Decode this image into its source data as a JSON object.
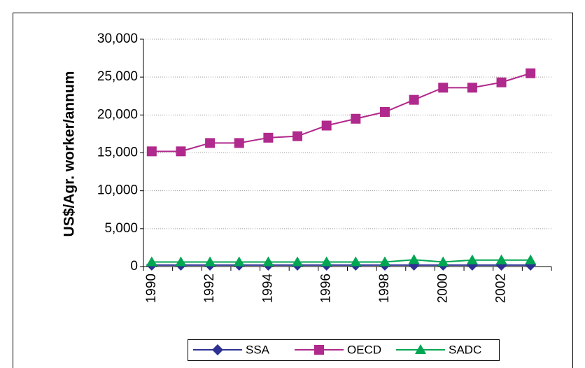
{
  "chart_data": {
    "type": "line",
    "y_label": "US$/Agr. worker/annum",
    "categories": [
      "1990",
      null,
      "1992",
      null,
      "1994",
      null,
      "1996",
      null,
      "1998",
      null,
      "2000",
      null,
      "2002",
      null
    ],
    "series": [
      {
        "name": "SSA",
        "color": "#2e3192",
        "marker": "diamond",
        "values": [
          200,
          200,
          200,
          200,
          200,
          200,
          200,
          200,
          200,
          200,
          200,
          200,
          200,
          200
        ]
      },
      {
        "name": "OECD",
        "color": "#b0298c",
        "marker": "square",
        "values": [
          15200,
          15200,
          16300,
          16300,
          17000,
          17200,
          18600,
          19500,
          20400,
          22000,
          23600,
          23600,
          24300,
          25500
        ]
      },
      {
        "name": "SADC",
        "color": "#00a651",
        "marker": "triangle",
        "values": [
          600,
          600,
          600,
          600,
          600,
          600,
          600,
          600,
          600,
          900,
          600,
          850,
          850,
          850
        ]
      }
    ],
    "ylim": [
      0,
      30000
    ],
    "yticks": [
      0,
      {
        "value": 5000,
        "label": "5,000"
      },
      {
        "value": 10000,
        "label": "10,000"
      },
      {
        "value": 15000,
        "label": "15,000"
      },
      {
        "value": 20000,
        "label": "20,000"
      },
      {
        "value": 25000,
        "label": "25,000"
      },
      {
        "value": 30000,
        "label": "30,000"
      }
    ],
    "grid": true,
    "legend": "bottom"
  }
}
